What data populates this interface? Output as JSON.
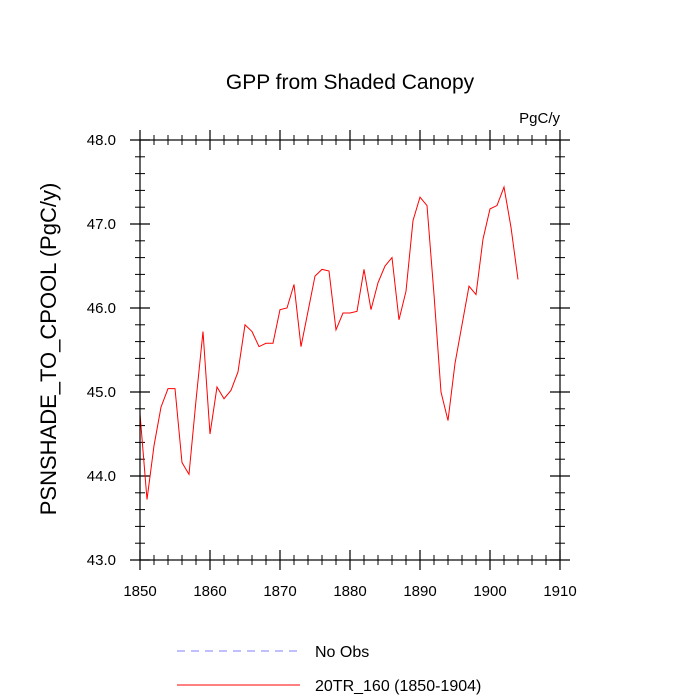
{
  "chart_data": {
    "type": "line",
    "title": "GPP from Shaded Canopy",
    "units": "PgC/y",
    "ylabel": "PSNSHADE_TO_CPOOL  (PgC/y)",
    "xlabel": "",
    "xlim": [
      1850,
      1910
    ],
    "ylim": [
      43.0,
      48.0
    ],
    "x_ticks": [
      1850,
      1860,
      1870,
      1880,
      1890,
      1900,
      1910
    ],
    "x_tick_labels": [
      "1850",
      "1860",
      "1870",
      "1880",
      "1890",
      "1900",
      "1910"
    ],
    "y_ticks": [
      43.0,
      44.0,
      45.0,
      46.0,
      47.0,
      48.0
    ],
    "y_tick_labels": [
      "43.0",
      "44.0",
      "45.0",
      "46.0",
      "47.0",
      "48.0"
    ],
    "grid": false,
    "legend_position": "bottom",
    "series": [
      {
        "name": "No Obs",
        "color": "#8080ff",
        "style": "dashed",
        "x": [],
        "values": []
      },
      {
        "name": "20TR_160 (1850-1904)",
        "color": "#ff0000",
        "style": "solid",
        "x": [
          1850,
          1851,
          1852,
          1853,
          1854,
          1855,
          1856,
          1857,
          1858,
          1859,
          1860,
          1861,
          1862,
          1863,
          1864,
          1865,
          1866,
          1867,
          1868,
          1869,
          1870,
          1871,
          1872,
          1873,
          1874,
          1875,
          1876,
          1877,
          1878,
          1879,
          1880,
          1881,
          1882,
          1883,
          1884,
          1885,
          1886,
          1887,
          1888,
          1889,
          1890,
          1891,
          1892,
          1893,
          1894,
          1895,
          1896,
          1897,
          1898,
          1899,
          1900,
          1901,
          1902,
          1903,
          1904
        ],
        "values": [
          44.74,
          43.72,
          44.36,
          44.82,
          45.04,
          45.04,
          44.16,
          44.02,
          44.9,
          45.72,
          44.5,
          45.06,
          44.92,
          45.02,
          45.24,
          45.8,
          45.72,
          45.54,
          45.58,
          45.58,
          45.98,
          46.0,
          46.28,
          45.54,
          45.96,
          46.38,
          46.46,
          46.44,
          45.74,
          45.94,
          45.94,
          45.96,
          46.46,
          45.98,
          46.3,
          46.5,
          46.6,
          45.86,
          46.2,
          47.04,
          47.32,
          47.22,
          46.16,
          45.0,
          44.66,
          45.34,
          45.8,
          46.26,
          46.16,
          46.82,
          47.18,
          47.22,
          47.44,
          46.96,
          46.34
        ]
      }
    ]
  }
}
